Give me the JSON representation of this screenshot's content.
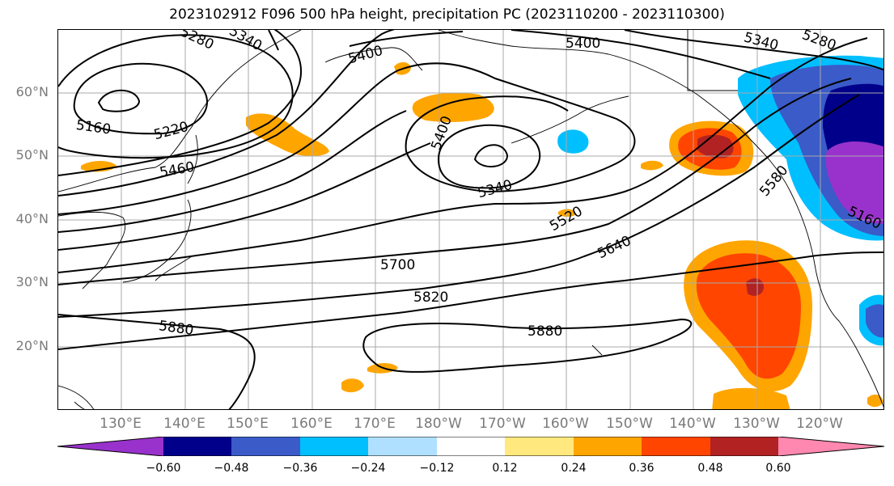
{
  "title": "2023102912 F096 500 hPa height, precipitation PC (2023110200 - 2023110300)",
  "lat_labels": [
    "60°N",
    "50°N",
    "40°N",
    "30°N",
    "20°N"
  ],
  "lon_labels": [
    "130°E",
    "140°E",
    "150°E",
    "160°E",
    "170°E",
    "180°W",
    "170°W",
    "160°W",
    "150°W",
    "140°W",
    "130°W",
    "120°W"
  ],
  "contour_labels": [
    {
      "text": "5280"
    },
    {
      "text": "5340"
    },
    {
      "text": "5400"
    },
    {
      "text": "5400"
    },
    {
      "text": "5340"
    },
    {
      "text": "5280"
    },
    {
      "text": "5160"
    },
    {
      "text": "5220"
    },
    {
      "text": "5460"
    },
    {
      "text": "5400"
    },
    {
      "text": "5340"
    },
    {
      "text": "5520"
    },
    {
      "text": "5580"
    },
    {
      "text": "5640"
    },
    {
      "text": "5700"
    },
    {
      "text": "5820"
    },
    {
      "text": "5880"
    },
    {
      "text": "5880"
    },
    {
      "text": "5160"
    }
  ],
  "colorbar": {
    "colors": [
      "#9932CC",
      "#00008B",
      "#3A5BC8",
      "#00BFFF",
      "#B0E0FF",
      "#FFFFFF",
      "#FFE97F",
      "#FFA500",
      "#FF4500",
      "#B22222",
      "#FF88B0"
    ],
    "ticks": [
      "−0.60",
      "−0.48",
      "−0.36",
      "−0.24",
      "−0.12",
      "0.12",
      "0.24",
      "0.36",
      "0.48",
      "0.60"
    ]
  }
}
